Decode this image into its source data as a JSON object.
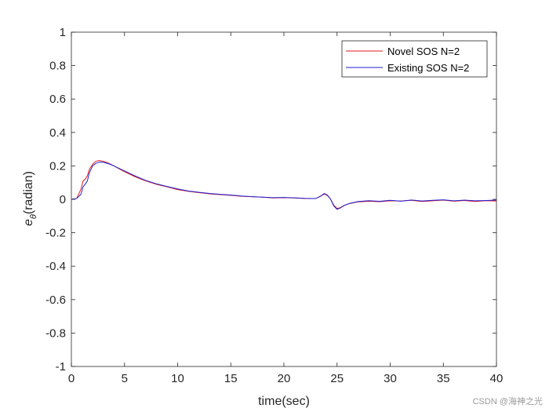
{
  "chart_data": {
    "type": "line",
    "xlabel": "time(sec)",
    "ylabel": "e_θ(radian)",
    "ylabel_main": "e",
    "ylabel_sub": "θ",
    "ylabel_unit": "(radian)",
    "xlim": [
      0,
      40
    ],
    "ylim": [
      -1,
      1
    ],
    "xticks": [
      0,
      5,
      10,
      15,
      20,
      25,
      30,
      35,
      40
    ],
    "yticks": [
      -1,
      -0.8,
      -0.6,
      -0.4,
      -0.2,
      0,
      0.2,
      0.4,
      0.6,
      0.8,
      1
    ],
    "grid": false,
    "legend_position": "top-right",
    "series": [
      {
        "name": "Novel SOS N=2",
        "color": "#e41a1c",
        "x": [
          0,
          0.5,
          0.9,
          1.1,
          1.3,
          1.5,
          1.7,
          2.0,
          2.3,
          2.6,
          3.0,
          3.5,
          4,
          5,
          6,
          7,
          8,
          9,
          10,
          11,
          12,
          13,
          14,
          15,
          16,
          17,
          18,
          19,
          20,
          21,
          22,
          23,
          23.5,
          23.8,
          24.1,
          24.4,
          24.7,
          25.0,
          25.3,
          25.7,
          26.2,
          27,
          28,
          29,
          30,
          31,
          32,
          33,
          34,
          35,
          36,
          37,
          38,
          39,
          40
        ],
        "values": [
          0,
          0.005,
          0.06,
          0.11,
          0.12,
          0.14,
          0.18,
          0.21,
          0.228,
          0.232,
          0.228,
          0.216,
          0.2,
          0.165,
          0.135,
          0.11,
          0.09,
          0.075,
          0.058,
          0.048,
          0.04,
          0.033,
          0.028,
          0.024,
          0.018,
          0.016,
          0.013,
          0.008,
          0.01,
          0.008,
          0.005,
          0.005,
          0.02,
          0.032,
          0.022,
          0.0,
          -0.035,
          -0.055,
          -0.05,
          -0.035,
          -0.025,
          -0.015,
          -0.012,
          -0.014,
          -0.009,
          -0.01,
          -0.006,
          -0.013,
          -0.009,
          -0.005,
          -0.011,
          -0.007,
          -0.013,
          -0.008,
          -0.01
        ]
      },
      {
        "name": "Existing SOS N=2",
        "color": "#1f1fd6",
        "x": [
          0,
          0.5,
          0.9,
          1.1,
          1.3,
          1.5,
          1.7,
          2.0,
          2.3,
          2.6,
          3.0,
          3.5,
          4,
          5,
          6,
          7,
          8,
          9,
          10,
          11,
          12,
          13,
          14,
          15,
          16,
          17,
          18,
          19,
          20,
          21,
          22,
          23,
          23.5,
          23.8,
          24.1,
          24.4,
          24.7,
          25.0,
          25.3,
          25.7,
          26.2,
          27,
          28,
          29,
          30,
          31,
          32,
          33,
          34,
          35,
          36,
          37,
          38,
          39,
          40
        ],
        "values": [
          0,
          0.005,
          0.03,
          0.075,
          0.09,
          0.11,
          0.16,
          0.2,
          0.215,
          0.222,
          0.222,
          0.213,
          0.2,
          0.17,
          0.14,
          0.113,
          0.093,
          0.077,
          0.062,
          0.05,
          0.042,
          0.035,
          0.03,
          0.026,
          0.02,
          0.016,
          0.013,
          0.01,
          0.011,
          0.009,
          0.006,
          0.005,
          0.021,
          0.035,
          0.025,
          0.0,
          -0.04,
          -0.06,
          -0.052,
          -0.036,
          -0.024,
          -0.013,
          -0.008,
          -0.012,
          -0.006,
          -0.011,
          -0.004,
          -0.01,
          -0.006,
          -0.003,
          -0.009,
          -0.005,
          -0.009,
          -0.007,
          -0.005
        ]
      }
    ]
  },
  "watermark": "CSDN @海神之光"
}
